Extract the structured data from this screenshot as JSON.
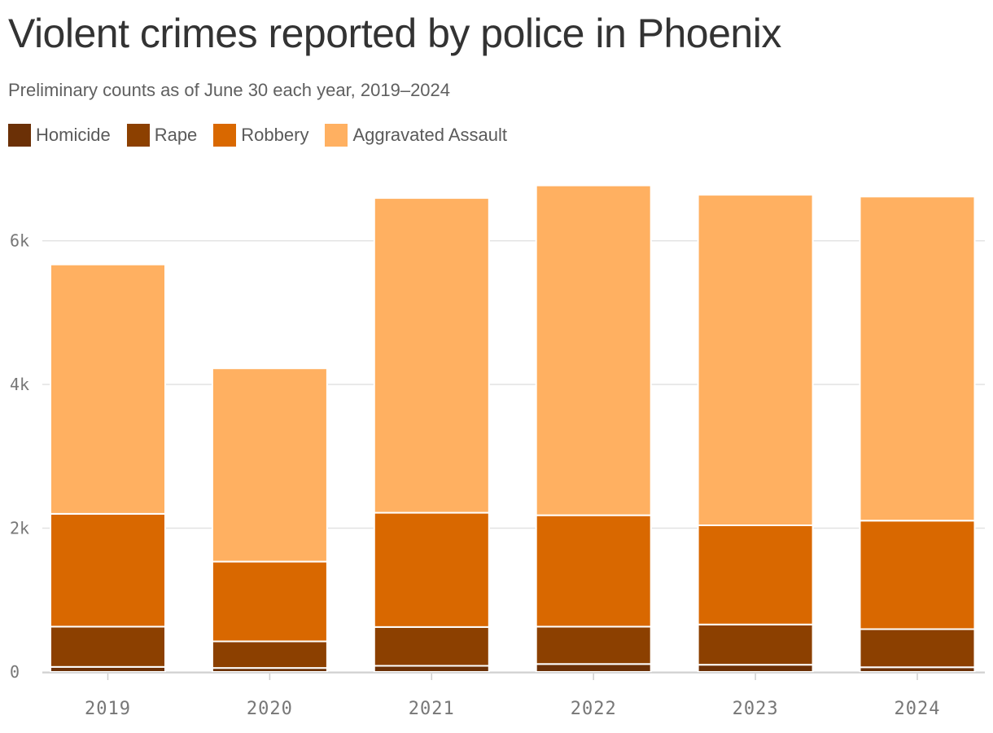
{
  "header": {
    "title": "Violent crimes reported by police in Phoenix",
    "subtitle": "Preliminary counts as of June 30 each year, 2019–2024"
  },
  "legend": [
    {
      "label": "Homicide",
      "color": "#6b3006"
    },
    {
      "label": "Rape",
      "color": "#8c4000"
    },
    {
      "label": "Robbery",
      "color": "#d96800"
    },
    {
      "label": "Aggravated Assault",
      "color": "#ffb061"
    }
  ],
  "chart_data": {
    "type": "bar",
    "stacked": true,
    "title": "Violent crimes reported by police in Phoenix",
    "subtitle": "Preliminary counts as of June 30 each year, 2019–2024",
    "categories": [
      "2019",
      "2020",
      "2021",
      "2022",
      "2023",
      "2024"
    ],
    "series": [
      {
        "name": "Homicide",
        "color": "#6b3006",
        "values": [
          70,
          55,
          85,
          110,
          100,
          65
        ]
      },
      {
        "name": "Rape",
        "color": "#8c4000",
        "values": [
          560,
          370,
          540,
          520,
          560,
          530
        ]
      },
      {
        "name": "Robbery",
        "color": "#d96800",
        "values": [
          1570,
          1110,
          1590,
          1550,
          1380,
          1510
        ]
      },
      {
        "name": "Aggravated Assault",
        "color": "#ffb061",
        "values": [
          3470,
          2690,
          4380,
          4590,
          4600,
          4510
        ]
      }
    ],
    "yticks": [
      0,
      2000,
      4000,
      6000
    ],
    "ytick_labels": [
      "0",
      "2k",
      "4k",
      "6k"
    ],
    "ylim": [
      0,
      6800
    ],
    "xlabel": "",
    "ylabel": "",
    "grid": true,
    "legend_position": "top-left"
  }
}
